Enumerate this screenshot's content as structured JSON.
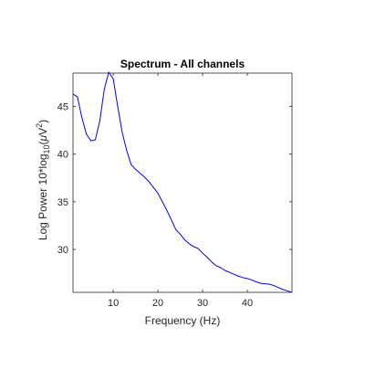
{
  "chart_data": {
    "type": "line",
    "title": "Spectrum - All channels",
    "xlabel": "Frequency (Hz)",
    "ylabel": {
      "prefix": "Log Power 10*log",
      "sub": "10",
      "middle": "(",
      "mu": "μ",
      "unit": "V",
      "sup": "2",
      "suffix": ")"
    },
    "xlim": [
      1,
      50
    ],
    "ylim": [
      25.5,
      48.5
    ],
    "xticks": [
      10,
      20,
      30,
      40
    ],
    "yticks": [
      30,
      35,
      40,
      45
    ],
    "grid": false,
    "line_color": "#0000ff",
    "series": [
      {
        "x": [
          1,
          2,
          3,
          4,
          5,
          6,
          7,
          8,
          9,
          10,
          11,
          12,
          13,
          14,
          15,
          16,
          17,
          18,
          19,
          20,
          21,
          22,
          23,
          24,
          25,
          26,
          27,
          28,
          29,
          30,
          31,
          32,
          33,
          34,
          35,
          36,
          37,
          38,
          39,
          40,
          41,
          42,
          43,
          44,
          45,
          46,
          47,
          48,
          49,
          50
        ],
        "y": [
          46.3,
          46.0,
          43.8,
          42.1,
          41.4,
          41.5,
          43.5,
          46.8,
          48.6,
          47.9,
          45.0,
          42.3,
          40.4,
          38.9,
          38.4,
          38.0,
          37.6,
          37.1,
          36.5,
          35.9,
          35.0,
          34.1,
          33.1,
          32.1,
          31.6,
          31.0,
          30.6,
          30.3,
          30.1,
          29.6,
          29.2,
          28.7,
          28.3,
          28.1,
          27.8,
          27.6,
          27.4,
          27.2,
          27.05,
          26.95,
          26.8,
          26.6,
          26.45,
          26.4,
          26.35,
          26.2,
          26.0,
          25.8,
          25.65,
          25.5
        ]
      }
    ]
  }
}
